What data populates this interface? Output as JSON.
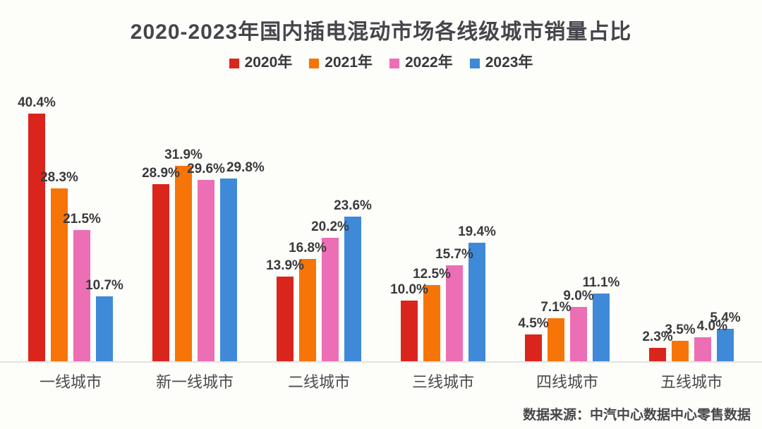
{
  "chart_data": {
    "type": "bar",
    "title": "2020-2023年国内插电混动市场各线级城市销量占比",
    "categories": [
      "一线城市",
      "新一线城市",
      "二线城市",
      "三线城市",
      "四线城市",
      "五线城市"
    ],
    "series": [
      {
        "name": "2020年",
        "color": "#da251d",
        "values": [
          40.4,
          28.9,
          13.9,
          10.0,
          4.5,
          2.3
        ]
      },
      {
        "name": "2021年",
        "color": "#f67408",
        "values": [
          28.3,
          31.9,
          16.8,
          12.5,
          7.1,
          3.5
        ]
      },
      {
        "name": "2022年",
        "color": "#ec6fb5",
        "values": [
          21.5,
          29.6,
          20.2,
          15.7,
          9.0,
          4.0
        ]
      },
      {
        "name": "2023年",
        "color": "#3e8ad8",
        "values": [
          10.7,
          29.8,
          23.6,
          19.4,
          11.1,
          5.4
        ]
      }
    ],
    "value_suffix": "%",
    "value_labels": true,
    "ylim": [
      0,
      44
    ],
    "grid": false,
    "legend_position": "top",
    "source": "数据来源：中汽中心数据中心零售数据",
    "colors": {
      "title_text": "#45464b",
      "value_label_text": "#3a3a3d",
      "category_text": "#4b4b4d",
      "axis_line": "#e4e2de",
      "background": "#fdfdfa"
    }
  }
}
